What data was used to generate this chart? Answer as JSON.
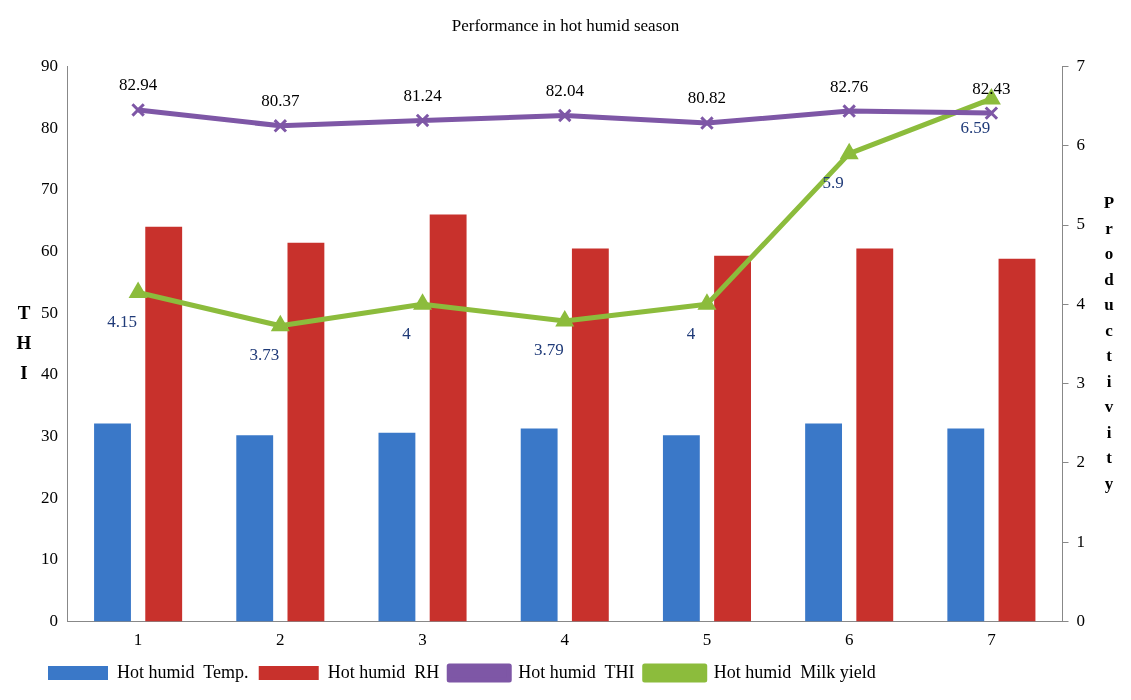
{
  "chart_data": {
    "type": "bar",
    "title": "Performance in hot humid season",
    "ylabel": "THI",
    "y2label": "Productivity",
    "categories": [
      "1",
      "2",
      "3",
      "4",
      "5",
      "6",
      "7"
    ],
    "ylim": [
      0,
      90
    ],
    "yticks": [
      0,
      10,
      20,
      30,
      40,
      50,
      60,
      70,
      80,
      90
    ],
    "y2lim": [
      0,
      7
    ],
    "y2ticks": [
      0,
      1,
      2,
      3,
      4,
      5,
      6,
      7
    ],
    "grid": false,
    "legend": "bottom",
    "series": [
      {
        "name": "Hot humid  Temp.",
        "color": "#3a78c8",
        "values": [
          32.1,
          30.2,
          30.6,
          31.3,
          30.2,
          32.1,
          31.3
        ]
      },
      {
        "name": "Hot humid  RH",
        "color": "#c8312c",
        "values": [
          64.0,
          61.4,
          66.0,
          60.5,
          59.3,
          60.5,
          58.8
        ]
      },
      {
        "name": "Hot humid  THI",
        "type": "line",
        "color": "#7e57a6",
        "marker": "cross",
        "values": [
          82.94,
          80.37,
          81.24,
          82.04,
          80.82,
          82.76,
          82.43
        ],
        "value_labels": [
          "82.94",
          "80.37",
          "81.24",
          "82.04",
          "80.82",
          "82.76",
          "82.43"
        ]
      },
      {
        "name": "Hot humid  Milk yield",
        "type": "line",
        "axis": "y2",
        "color": "#8cbc3c",
        "marker": "triangle",
        "values": [
          4.15,
          3.73,
          4,
          3.79,
          4,
          5.9,
          6.59
        ],
        "value_labels": [
          "4.15",
          "3.73",
          "4",
          "3.79",
          "4",
          "5.9",
          "6.59"
        ]
      }
    ]
  }
}
